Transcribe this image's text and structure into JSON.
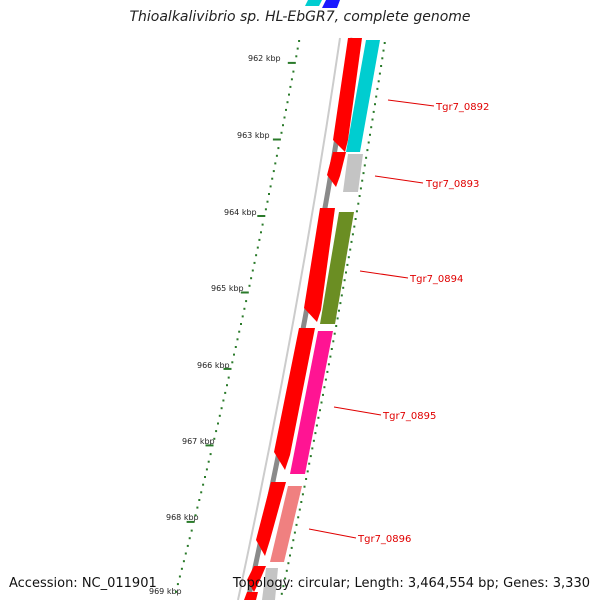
{
  "title": "Thioalkalivibrio sp. HL-EbGR7, complete genome",
  "accession_text": "Accession: NC_011901",
  "topology_text": "Topology: circular; Length: 3,464,554 bp; Genes: 3,330",
  "axis_labels": [
    "962 kbp",
    "963 kbp",
    "964 kbp",
    "965 kbp",
    "966 kbp",
    "967 kbp",
    "968 kbp",
    "969 kbp"
  ],
  "genes": [
    {
      "label": "Tgr7_0892",
      "color": "#00cdd0"
    },
    {
      "label": "Tgr7_0893",
      "color": "#c4c4c4"
    },
    {
      "label": "Tgr7_0894",
      "color": "#6b8e23"
    },
    {
      "label": "Tgr7_0895",
      "color": "#ff1493"
    },
    {
      "label": "Tgr7_0896",
      "color": "#f08080"
    }
  ],
  "colors": {
    "cds": "#ff0000",
    "label": "#e00000",
    "tick": "#2a7a2a",
    "backbone": "#888888"
  }
}
